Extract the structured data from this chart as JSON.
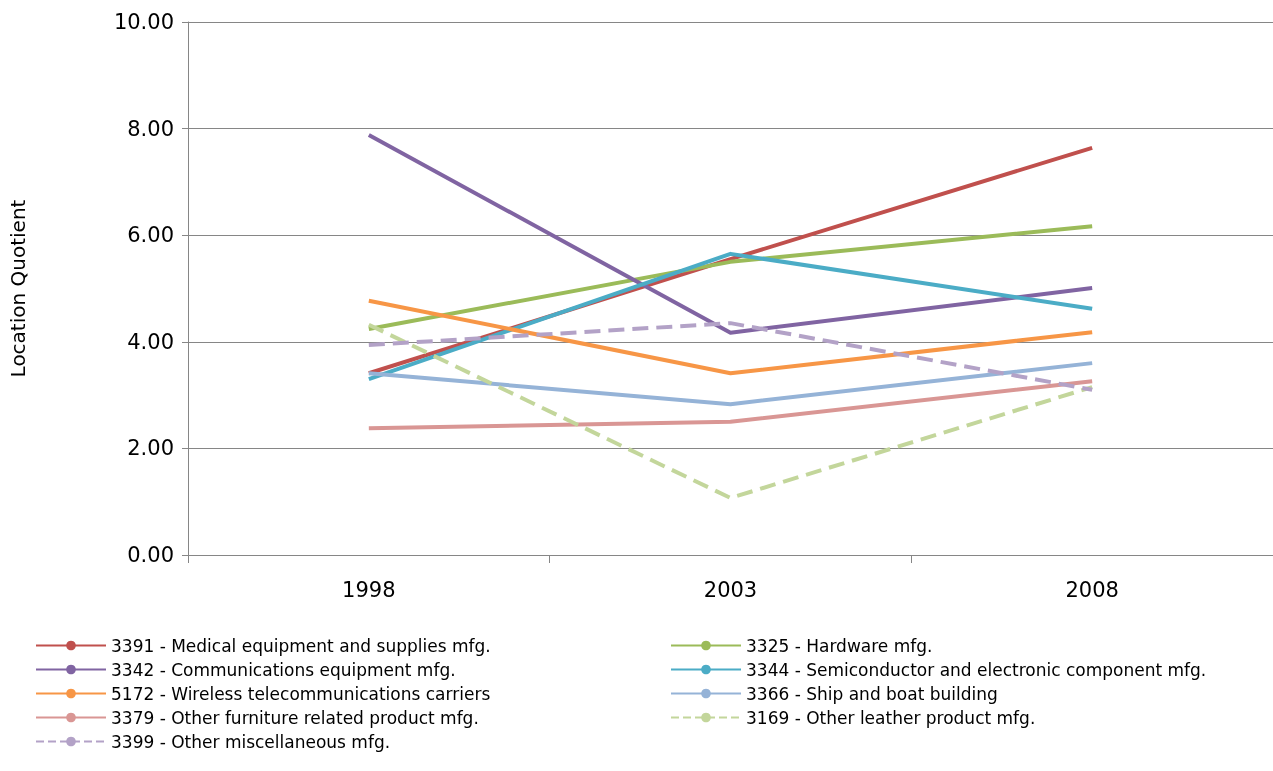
{
  "chart_data": {
    "type": "line",
    "ylabel": "Location Quotient",
    "categories": [
      "1998",
      "2003",
      "2008"
    ],
    "ylim": [
      0,
      10
    ],
    "yticks": [
      {
        "value": 0,
        "label": "0.00"
      },
      {
        "value": 2,
        "label": "2.00"
      },
      {
        "value": 4,
        "label": "4.00"
      },
      {
        "value": 6,
        "label": "6.00"
      },
      {
        "value": 8,
        "label": "8.00"
      },
      {
        "value": 10,
        "label": "10.00"
      }
    ],
    "grid": "y",
    "legend": "bottom",
    "marker": "none",
    "series": [
      {
        "name": "3391 - Medical equipment and supplies mfg.",
        "color": "#c0504d",
        "values": [
          3.41,
          5.55,
          7.64
        ]
      },
      {
        "name": "3325 - Hardware mfg.",
        "color": "#9bbb59",
        "values": [
          4.24,
          5.5,
          6.17
        ]
      },
      {
        "name": "3342 - Communications equipment mfg.",
        "color": "#8064a2",
        "values": [
          7.88,
          4.17,
          5.01
        ]
      },
      {
        "name": "3344 - Semiconductor and electronic component mfg.",
        "color": "#4bacc6",
        "values": [
          3.3,
          5.65,
          4.62
        ]
      },
      {
        "name": "5172 - Wireless telecommunications carriers",
        "color": "#f79646",
        "values": [
          4.77,
          3.41,
          4.18
        ]
      },
      {
        "name": "3366 - Ship and boat building",
        "color": "#95b3d7",
        "values": [
          3.41,
          2.83,
          3.6
        ]
      },
      {
        "name": "3379 - Other furniture related product mfg.",
        "color": "#d99694",
        "values": [
          2.38,
          2.5,
          3.26
        ]
      },
      {
        "name": "3169 - Other leather product mfg.",
        "color": "#c3d69b",
        "values": [
          4.32,
          1.07,
          3.15
        ],
        "line_style": "dashed"
      },
      {
        "name": "3399 - Other miscellaneous mfg.",
        "color": "#b3a2c7",
        "values": [
          3.94,
          4.35,
          3.1
        ],
        "line_style": "dashed"
      }
    ]
  }
}
